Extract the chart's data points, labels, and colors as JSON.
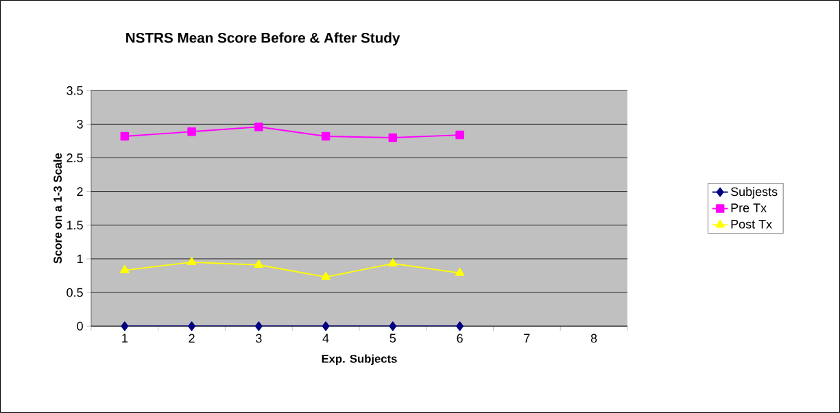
{
  "chart_data": {
    "type": "line",
    "title": "NSTRS Mean Score Before & After Study",
    "xlabel": "Exp. Subjects",
    "ylabel": "Score on a 1-3 Scale",
    "categories": [
      "1",
      "2",
      "3",
      "4",
      "5",
      "6",
      "7",
      "8"
    ],
    "series": [
      {
        "name": "Subjests",
        "color": "#000080",
        "marker": "diamond",
        "values": [
          0,
          0,
          0,
          0,
          0,
          0,
          null,
          null
        ]
      },
      {
        "name": "Pre Tx",
        "color": "#ff00ff",
        "marker": "square",
        "values": [
          2.82,
          2.89,
          2.96,
          2.82,
          2.8,
          2.84,
          null,
          null
        ]
      },
      {
        "name": "Post Tx",
        "color": "#ffff00",
        "marker": "triangle",
        "values": [
          0.83,
          0.95,
          0.91,
          0.73,
          0.93,
          0.79,
          null,
          null
        ]
      }
    ],
    "ylim": [
      0,
      3.5
    ],
    "yticks": [
      0,
      0.5,
      1,
      1.5,
      2,
      2.5,
      3,
      3.5
    ],
    "grid": "y",
    "legend": "right",
    "line_style": "solid"
  }
}
